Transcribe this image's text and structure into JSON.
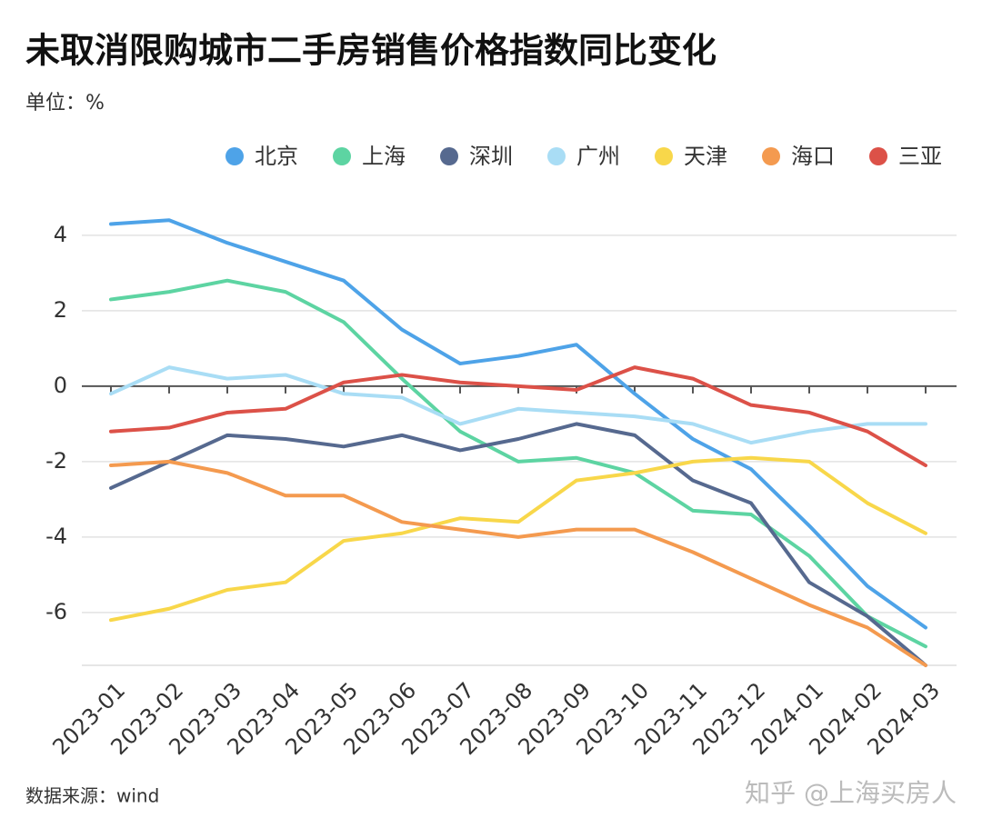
{
  "chart_data": {
    "type": "line",
    "title": "未取消限购城市二手房销售价格指数同比变化",
    "subtitle": "单位：%",
    "source": "数据来源：wind",
    "watermark": "知乎 @上海买房人",
    "categories": [
      "2023-01",
      "2023-02",
      "2023-03",
      "2023-04",
      "2023-05",
      "2023-06",
      "2023-07",
      "2023-08",
      "2023-09",
      "2023-10",
      "2023-11",
      "2023-12",
      "2024-01",
      "2024-02",
      "2024-03"
    ],
    "series": [
      {
        "name": "北京",
        "color": "#4ea3e8",
        "values": [
          4.3,
          4.4,
          3.8,
          3.3,
          2.8,
          1.5,
          0.6,
          0.8,
          1.1,
          -0.2,
          -1.4,
          -2.2,
          -3.7,
          -5.3,
          -6.4
        ]
      },
      {
        "name": "上海",
        "color": "#5dd4a2",
        "values": [
          2.3,
          2.5,
          2.8,
          2.5,
          1.7,
          0.2,
          -1.2,
          -2.0,
          -1.9,
          -2.3,
          -3.3,
          -3.4,
          -4.5,
          -6.1,
          -6.9
        ]
      },
      {
        "name": "深圳",
        "color": "#56698f",
        "values": [
          -2.7,
          -2.0,
          -1.3,
          -1.4,
          -1.6,
          -1.3,
          -1.7,
          -1.4,
          -1.0,
          -1.3,
          -2.5,
          -3.1,
          -5.2,
          -6.1,
          -7.4
        ]
      },
      {
        "name": "广州",
        "color": "#a9ddf5",
        "values": [
          -0.2,
          0.5,
          0.2,
          0.3,
          -0.2,
          -0.3,
          -1.0,
          -0.6,
          -0.7,
          -0.8,
          -1.0,
          -1.5,
          -1.2,
          -1.0,
          -1.0
        ]
      },
      {
        "name": "天津",
        "color": "#f8d74a",
        "values": [
          -6.2,
          -5.9,
          -5.4,
          -5.2,
          -4.1,
          -3.9,
          -3.5,
          -3.6,
          -2.5,
          -2.3,
          -2.0,
          -1.9,
          -2.0,
          -3.1,
          -3.9
        ]
      },
      {
        "name": "海口",
        "color": "#f49a4f",
        "values": [
          -2.1,
          -2.0,
          -2.3,
          -2.9,
          -2.9,
          -3.6,
          -3.8,
          -4.0,
          -3.8,
          -3.8,
          -4.4,
          -5.1,
          -5.8,
          -6.4,
          -7.4
        ]
      },
      {
        "name": "三亚",
        "color": "#dc5148",
        "values": [
          -1.2,
          -1.1,
          -0.7,
          -0.6,
          0.1,
          0.3,
          0.1,
          0.0,
          -0.1,
          0.5,
          0.2,
          -0.5,
          -0.7,
          -1.2,
          -2.1
        ]
      }
    ],
    "ylim": [
      -7.4,
      4.6
    ],
    "yticks": [
      4,
      2,
      0,
      -2,
      -4,
      -6
    ],
    "grid": true,
    "legend": "top-right"
  }
}
